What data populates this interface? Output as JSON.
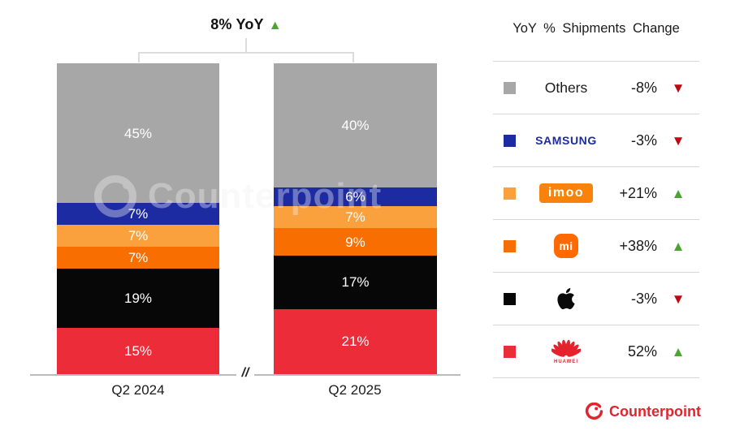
{
  "header": {
    "title": "8% YoY",
    "arrow": "▲"
  },
  "watermark": {
    "text": "Counterpoint"
  },
  "axis": {
    "break_label": "//"
  },
  "chart_data": {
    "type": "bar",
    "stacked": true,
    "unit": "%",
    "title": "8% YoY",
    "yoy_change": "8%",
    "yoy_direction": "up",
    "categories": [
      "Q2 2024",
      "Q2 2025"
    ],
    "series": [
      {
        "name": "Huawei",
        "color": "#ED2C39",
        "values": [
          15,
          21
        ]
      },
      {
        "name": "Apple",
        "color": "#070707",
        "values": [
          19,
          17
        ]
      },
      {
        "name": "Xiaomi",
        "color": "#F86E01",
        "values": [
          7,
          9
        ]
      },
      {
        "name": "imoo",
        "color": "#FAA13E",
        "values": [
          7,
          7
        ]
      },
      {
        "name": "Samsung",
        "color": "#1D2BA3",
        "values": [
          7,
          6
        ]
      },
      {
        "name": "Others",
        "color": "#A7A7A7",
        "values": [
          45,
          40
        ]
      }
    ],
    "ylim": [
      0,
      100
    ],
    "legend_position": "right",
    "grid": false
  },
  "legend": {
    "title": "YoY % Shipments Change",
    "colors": {
      "up": "#4CA431",
      "down": "#BF0811"
    },
    "rows": [
      {
        "brand": "Others",
        "logo_text": "Others",
        "change": "-8%",
        "direction": "down",
        "arrow": "▼",
        "color": "#A7A7A7"
      },
      {
        "brand": "Samsung",
        "logo_text": "SAMSUNG",
        "change": "-3%",
        "direction": "down",
        "arrow": "▼",
        "color": "#1D2BA3"
      },
      {
        "brand": "imoo",
        "logo_text": "imoo",
        "change": "+21%",
        "direction": "up",
        "arrow": "▲",
        "color": "#FAA13E"
      },
      {
        "brand": "Xiaomi",
        "logo_text": "mi",
        "change": "+38%",
        "direction": "up",
        "arrow": "▲",
        "color": "#F86E01"
      },
      {
        "brand": "Apple",
        "logo_text": "",
        "change": "-3%",
        "direction": "down",
        "arrow": "▼",
        "color": "#070707"
      },
      {
        "brand": "Huawei",
        "logo_text": "HUAWEI",
        "change": "52%",
        "direction": "up",
        "arrow": "▲",
        "color": "#ED2C39"
      }
    ]
  },
  "footer": {
    "brand": "Counterpoint",
    "color": "#E3242E"
  }
}
